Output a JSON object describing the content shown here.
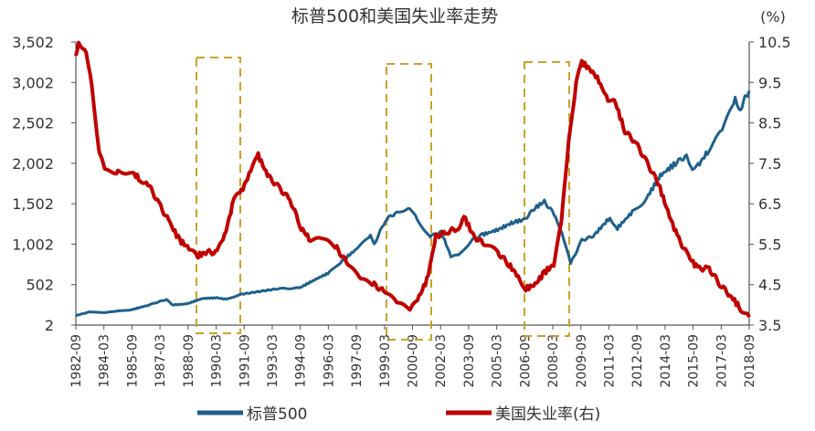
{
  "chart_data": {
    "type": "line",
    "title": "标普500和美国失业率走势",
    "right_unit": "(%)",
    "xlim": [
      1982.75,
      2018.75
    ],
    "x_tick_labels": [
      "1982-09",
      "1984-03",
      "1985-09",
      "1987-03",
      "1988-09",
      "1990-03",
      "1991-09",
      "1993-03",
      "1994-09",
      "1996-03",
      "1997-09",
      "1999-03",
      "2000-09",
      "2002-03",
      "2003-09",
      "2005-03",
      "2006-09",
      "2008-03",
      "2009-09",
      "2011-03",
      "2012-09",
      "2014-03",
      "2015-09",
      "2017-03",
      "2018-09"
    ],
    "left_axis": {
      "ylim": [
        2,
        3502
      ],
      "tick_labels": [
        "3,502",
        "3,002",
        "2,502",
        "2,002",
        "1,502",
        "1,002",
        "502",
        "2"
      ]
    },
    "right_axis": {
      "ylim": [
        3.5,
        10.5
      ],
      "tick_labels": [
        "10.5",
        "9.5",
        "8.5",
        "7.5",
        "6.5",
        "5.5",
        "4.5",
        "3.5"
      ]
    },
    "legend_position": "bottom",
    "series": [
      {
        "name": "标普500",
        "axis": "left",
        "color": "#1F5F8B",
        "points": [
          [
            1982.75,
            120
          ],
          [
            1983.5,
            165
          ],
          [
            1984.3,
            155
          ],
          [
            1985,
            175
          ],
          [
            1985.7,
            190
          ],
          [
            1986.5,
            240
          ],
          [
            1987.6,
            320
          ],
          [
            1987.9,
            250
          ],
          [
            1988.7,
            265
          ],
          [
            1989.5,
            330
          ],
          [
            1990.3,
            340
          ],
          [
            1990.8,
            320
          ],
          [
            1991.5,
            380
          ],
          [
            1992.5,
            415
          ],
          [
            1993.5,
            450
          ],
          [
            1994.7,
            460
          ],
          [
            1995.5,
            560
          ],
          [
            1996.3,
            650
          ],
          [
            1997,
            800
          ],
          [
            1997.8,
            950
          ],
          [
            1998.5,
            1100
          ],
          [
            1998.7,
            1000
          ],
          [
            1999.3,
            1300
          ],
          [
            1999.9,
            1400
          ],
          [
            2000.6,
            1460
          ],
          [
            2001,
            1300
          ],
          [
            2001.7,
            1100
          ],
          [
            2002.3,
            1150
          ],
          [
            2002.8,
            850
          ],
          [
            2003.2,
            860
          ],
          [
            2003.9,
            1050
          ],
          [
            2004.5,
            1120
          ],
          [
            2005.3,
            1180
          ],
          [
            2006.2,
            1280
          ],
          [
            2006.7,
            1300
          ],
          [
            2007.3,
            1450
          ],
          [
            2007.8,
            1530
          ],
          [
            2008.4,
            1350
          ],
          [
            2008.8,
            1100
          ],
          [
            2009.2,
            760
          ],
          [
            2009.8,
            1050
          ],
          [
            2010.4,
            1100
          ],
          [
            2011.3,
            1330
          ],
          [
            2011.7,
            1200
          ],
          [
            2012.5,
            1400
          ],
          [
            2013.2,
            1550
          ],
          [
            2014,
            1850
          ],
          [
            2014.8,
            2000
          ],
          [
            2015.4,
            2100
          ],
          [
            2015.7,
            1950
          ],
          [
            2016.1,
            2000
          ],
          [
            2016.6,
            2170
          ],
          [
            2017.3,
            2400
          ],
          [
            2018,
            2780
          ],
          [
            2018.2,
            2650
          ],
          [
            2018.75,
            2900
          ]
        ]
      },
      {
        "name": "美国失业率(右)",
        "axis": "right",
        "color": "#C00000",
        "points": [
          [
            1982.75,
            10.1
          ],
          [
            1982.9,
            10.5
          ],
          [
            1983.3,
            10.3
          ],
          [
            1983.6,
            9.4
          ],
          [
            1984,
            7.8
          ],
          [
            1984.3,
            7.3
          ],
          [
            1985,
            7.3
          ],
          [
            1985.7,
            7.3
          ],
          [
            1986.2,
            7.1
          ],
          [
            1986.6,
            7.0
          ],
          [
            1987.2,
            6.5
          ],
          [
            1987.8,
            6.0
          ],
          [
            1988.3,
            5.6
          ],
          [
            1988.8,
            5.4
          ],
          [
            1989.2,
            5.2
          ],
          [
            1989.7,
            5.3
          ],
          [
            1990.3,
            5.3
          ],
          [
            1990.7,
            5.7
          ],
          [
            1991.2,
            6.6
          ],
          [
            1991.6,
            6.8
          ],
          [
            1992.1,
            7.3
          ],
          [
            1992.5,
            7.7
          ],
          [
            1993,
            7.2
          ],
          [
            1993.6,
            6.9
          ],
          [
            1994.2,
            6.6
          ],
          [
            1994.8,
            5.9
          ],
          [
            1995.3,
            5.6
          ],
          [
            1996,
            5.6
          ],
          [
            1996.7,
            5.4
          ],
          [
            1997.3,
            5.0
          ],
          [
            1998,
            4.6
          ],
          [
            1998.7,
            4.5
          ],
          [
            1999.3,
            4.3
          ],
          [
            2000,
            4.0
          ],
          [
            2000.7,
            3.9
          ],
          [
            2001.1,
            4.2
          ],
          [
            2001.6,
            4.7
          ],
          [
            2002,
            5.7
          ],
          [
            2002.6,
            5.8
          ],
          [
            2003.2,
            5.9
          ],
          [
            2003.5,
            6.2
          ],
          [
            2004,
            5.7
          ],
          [
            2004.6,
            5.5
          ],
          [
            2005.3,
            5.3
          ],
          [
            2005.9,
            5.0
          ],
          [
            2006.4,
            4.7
          ],
          [
            2006.8,
            4.4
          ],
          [
            2007.3,
            4.5
          ],
          [
            2007.8,
            4.8
          ],
          [
            2008.3,
            5.0
          ],
          [
            2008.7,
            6.0
          ],
          [
            2009.1,
            8.0
          ],
          [
            2009.5,
            9.5
          ],
          [
            2009.8,
            10.0
          ],
          [
            2010.3,
            9.8
          ],
          [
            2010.8,
            9.5
          ],
          [
            2011.2,
            9.1
          ],
          [
            2011.6,
            9.0
          ],
          [
            2012.1,
            8.3
          ],
          [
            2012.7,
            8.0
          ],
          [
            2013.3,
            7.5
          ],
          [
            2013.9,
            7.0
          ],
          [
            2014.4,
            6.3
          ],
          [
            2014.9,
            5.7
          ],
          [
            2015.5,
            5.2
          ],
          [
            2016,
            4.9
          ],
          [
            2016.6,
            4.9
          ],
          [
            2017.2,
            4.5
          ],
          [
            2017.8,
            4.2
          ],
          [
            2018.3,
            3.9
          ],
          [
            2018.75,
            3.7
          ]
        ]
      }
    ],
    "annotations": [
      {
        "type": "dashed-box",
        "period": [
          "1989-03",
          "1991-09"
        ],
        "color": "#C9A227"
      },
      {
        "type": "dashed-box",
        "period": [
          "1999-03",
          "2002-03"
        ],
        "color": "#C9A227"
      },
      {
        "type": "dashed-box",
        "period": [
          "2006-09",
          "2009-03"
        ],
        "color": "#C9A227"
      }
    ]
  }
}
